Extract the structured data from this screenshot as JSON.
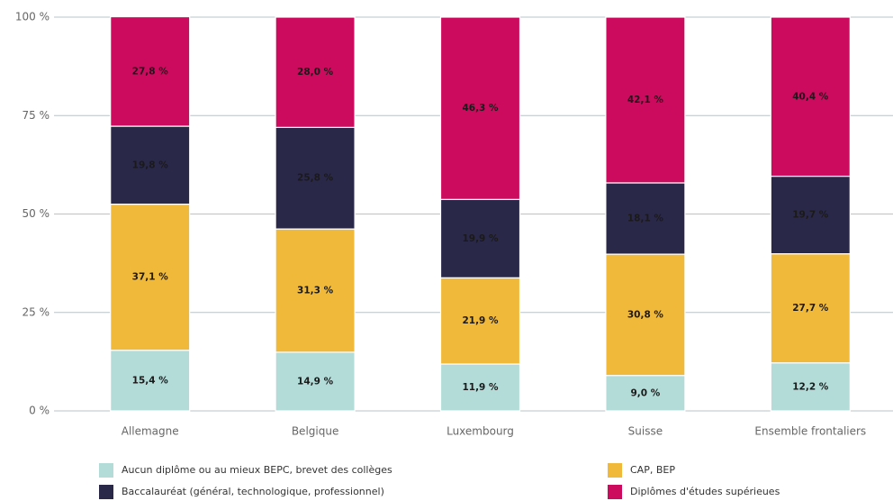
{
  "chart_data": {
    "type": "stacked_bar",
    "categories": [
      "Allemagne",
      "Belgique",
      "Luxembourg",
      "Suisse",
      "Ensemble frontaliers"
    ],
    "series": [
      {
        "name": "Aucun diplôme ou au mieux BEPC, brevet des collèges",
        "color": "#b3dcd9",
        "values": [
          15.4,
          14.9,
          11.9,
          9.0,
          12.2
        ],
        "value_labels": [
          "15,4 %",
          "14,9 %",
          "11,9 %",
          "9,0 %",
          "12,2 %"
        ]
      },
      {
        "name": "CAP, BEP",
        "color": "#f0b93a",
        "values": [
          37.1,
          31.3,
          21.9,
          30.8,
          27.7
        ],
        "value_labels": [
          "37,1 %",
          "31,3 %",
          "21,9 %",
          "30,8 %",
          "27,7 %"
        ]
      },
      {
        "name": "Baccalauréat (général, technologique, professionnel)",
        "color": "#2a2848",
        "values": [
          19.8,
          25.8,
          19.9,
          18.1,
          19.7
        ],
        "value_labels": [
          "19,8 %",
          "25,8 %",
          "19,9 %",
          "18,1 %",
          "19,7 %"
        ]
      },
      {
        "name": "Diplômes d'études supérieues",
        "color": "#cc0a5e",
        "values": [
          27.8,
          28.0,
          46.3,
          42.1,
          40.4
        ],
        "value_labels": [
          "27,8 %",
          "28,0 %",
          "46,3 %",
          "42,1 %",
          "40,4 %"
        ]
      }
    ],
    "ylim": [
      0,
      100
    ],
    "yticks": [
      {
        "value": 0,
        "label": "0 %"
      },
      {
        "value": 25,
        "label": "25 %"
      },
      {
        "value": 50,
        "label": "50 %"
      },
      {
        "value": 75,
        "label": "75 %"
      },
      {
        "value": 100,
        "label": "100 %"
      }
    ],
    "grid": true
  }
}
